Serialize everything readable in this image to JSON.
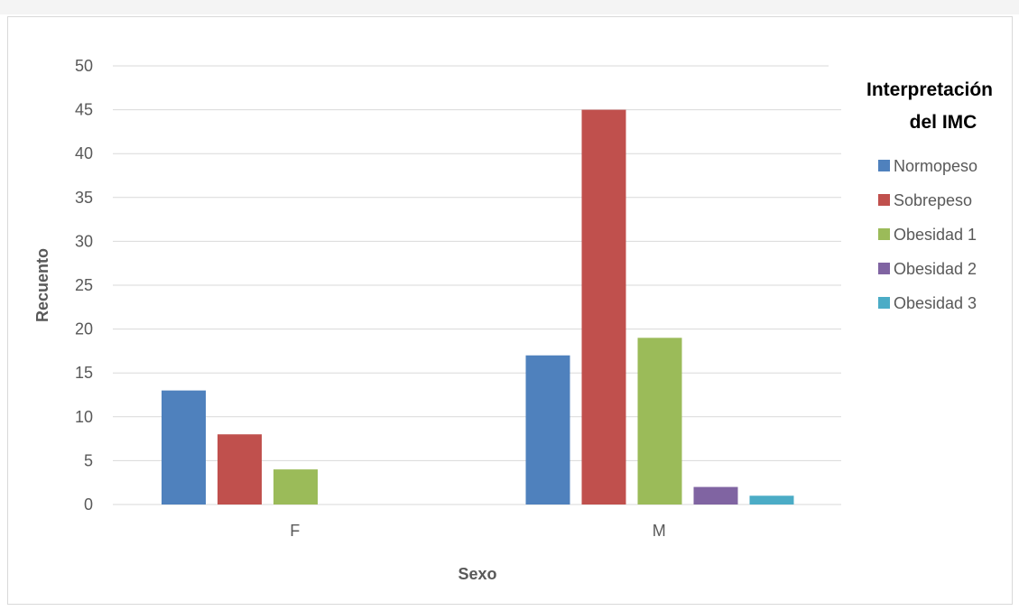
{
  "chart_data": {
    "type": "bar",
    "categories": [
      "F",
      "M"
    ],
    "series": [
      {
        "name": "Normopeso",
        "values": [
          13,
          17
        ],
        "color": "#4f81bd"
      },
      {
        "name": "Sobrepeso",
        "values": [
          8,
          45
        ],
        "color": "#c0504d"
      },
      {
        "name": "Obesidad 1",
        "values": [
          4,
          19
        ],
        "color": "#9bbb59"
      },
      {
        "name": "Obesidad 2",
        "values": [
          0,
          2
        ],
        "color": "#8064a2"
      },
      {
        "name": "Obesidad 3",
        "values": [
          0,
          1
        ],
        "color": "#4bacc6"
      }
    ],
    "title": "",
    "xlabel": "Sexo",
    "ylabel": "Recuento",
    "ylim": [
      0,
      50
    ],
    "yticks": [
      0,
      5,
      10,
      15,
      20,
      25,
      30,
      35,
      40,
      45,
      50
    ],
    "legend_title": [
      "Interpretación",
      "del IMC"
    ],
    "legend_position": "right",
    "grid": true
  }
}
